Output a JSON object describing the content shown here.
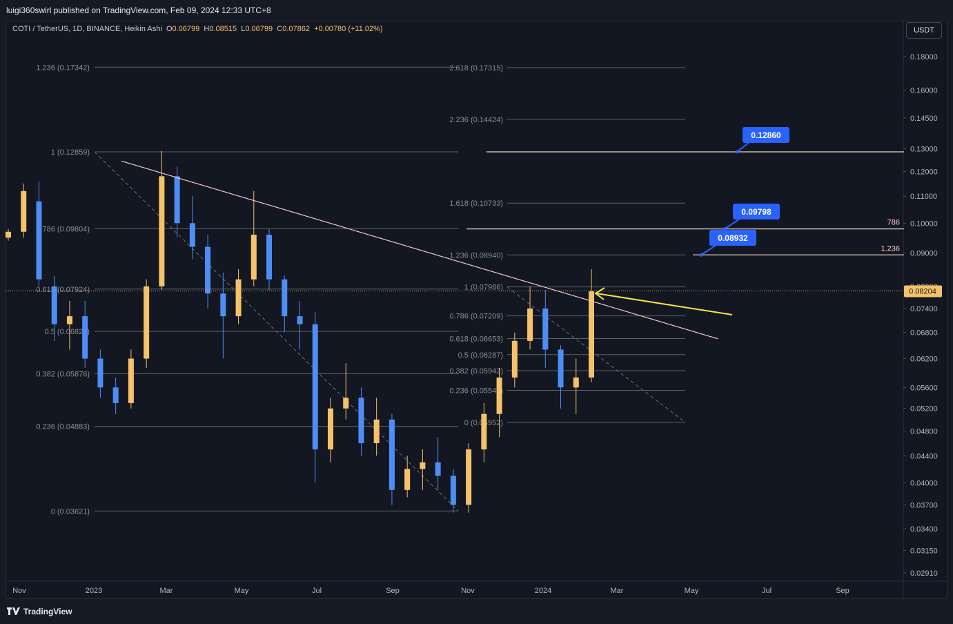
{
  "publisher": "luigi360swirl published on TradingView.com, Feb 09, 2024 12:33 UTC+8",
  "legend": {
    "symbol": "COTI / TetherUS, 1D, BINANCE, Heikin Ashi",
    "o_label": "O",
    "o_value": "0.06799",
    "h_label": "H",
    "h_value": "0.08515",
    "l_label": "L",
    "l_value": "0.06799",
    "c_label": "C",
    "c_value": "0.07862",
    "change": "+0.00780 (+11.02%)"
  },
  "currency_button": "USDT",
  "footer": {
    "brand": "TradingView",
    "logo_icon": "tradingview-logo-icon"
  },
  "colors": {
    "up": "#f5c26b",
    "down": "#4d8ef5",
    "trend": "#f3c8d4",
    "arrow": "#f5e642",
    "label_bg": "#2962ff",
    "price_tag": "#f5c26b"
  },
  "chart_data": {
    "type": "candlestick",
    "chart_style": "Heikin Ashi",
    "scale": "log",
    "y_ticks": [
      "0.18000",
      "0.16000",
      "0.14500",
      "0.13000",
      "0.12000",
      "0.11000",
      "0.10000",
      "0.09000",
      "0.08000",
      "0.07400",
      "0.06800",
      "0.06200",
      "0.05600",
      "0.05200",
      "0.04800",
      "0.04400",
      "0.04000",
      "0.03700",
      "0.03400",
      "0.03150",
      "0.02910"
    ],
    "x_ticks": [
      "Nov",
      "2023",
      "Mar",
      "May",
      "Jul",
      "Sep",
      "Nov",
      "2024",
      "Mar",
      "May",
      "Jul",
      "Sep"
    ],
    "last_price": "0.08204",
    "candles_approx": [
      [
        0.095,
        0.098,
        0.094,
        0.097
      ],
      [
        0.097,
        0.115,
        0.095,
        0.112
      ],
      [
        0.108,
        0.116,
        0.08,
        0.082
      ],
      [
        0.08,
        0.083,
        0.066,
        0.07
      ],
      [
        0.07,
        0.076,
        0.064,
        0.072
      ],
      [
        0.072,
        0.076,
        0.06,
        0.062
      ],
      [
        0.062,
        0.064,
        0.054,
        0.056
      ],
      [
        0.056,
        0.058,
        0.051,
        0.053
      ],
      [
        0.053,
        0.064,
        0.052,
        0.062
      ],
      [
        0.062,
        0.082,
        0.06,
        0.08
      ],
      [
        0.08,
        0.129,
        0.079,
        0.118
      ],
      [
        0.118,
        0.122,
        0.095,
        0.1
      ],
      [
        0.1,
        0.11,
        0.088,
        0.092
      ],
      [
        0.092,
        0.096,
        0.074,
        0.078
      ],
      [
        0.078,
        0.084,
        0.062,
        0.072
      ],
      [
        0.072,
        0.085,
        0.07,
        0.082
      ],
      [
        0.082,
        0.112,
        0.08,
        0.096
      ],
      [
        0.096,
        0.098,
        0.079,
        0.082
      ],
      [
        0.082,
        0.083,
        0.068,
        0.072
      ],
      [
        0.072,
        0.076,
        0.064,
        0.07
      ],
      [
        0.07,
        0.073,
        0.04,
        0.045
      ],
      [
        0.045,
        0.054,
        0.043,
        0.052
      ],
      [
        0.052,
        0.061,
        0.05,
        0.054
      ],
      [
        0.054,
        0.056,
        0.044,
        0.046
      ],
      [
        0.046,
        0.054,
        0.044,
        0.05
      ],
      [
        0.05,
        0.051,
        0.037,
        0.039
      ],
      [
        0.039,
        0.044,
        0.038,
        0.042
      ],
      [
        0.042,
        0.045,
        0.039,
        0.043
      ],
      [
        0.043,
        0.047,
        0.039,
        0.041
      ],
      [
        0.041,
        0.042,
        0.036,
        0.037
      ],
      [
        0.037,
        0.046,
        0.036,
        0.045
      ],
      [
        0.045,
        0.053,
        0.043,
        0.051
      ],
      [
        0.051,
        0.06,
        0.047,
        0.058
      ],
      [
        0.058,
        0.068,
        0.056,
        0.066
      ],
      [
        0.066,
        0.08,
        0.064,
        0.074
      ],
      [
        0.074,
        0.079,
        0.06,
        0.064
      ],
      [
        0.064,
        0.065,
        0.052,
        0.056
      ],
      [
        0.056,
        0.062,
        0.051,
        0.058
      ],
      [
        0.058,
        0.085,
        0.057,
        0.0786
      ]
    ],
    "fib_left": [
      {
        "ratio": "1.236",
        "price": "0.17342"
      },
      {
        "ratio": "1",
        "price": "0.12859"
      },
      {
        "ratio": "0.786",
        "price": "0.09804"
      },
      {
        "ratio": "0.618",
        "price": "0.07924"
      },
      {
        "ratio": "0.5",
        "price": "0.06824"
      },
      {
        "ratio": "0.382",
        "price": "0.05876"
      },
      {
        "ratio": "0.236",
        "price": "0.04883"
      },
      {
        "ratio": "0",
        "price": "0.03621"
      }
    ],
    "fib_right": [
      {
        "ratio": "2.618",
        "price": "0.17315"
      },
      {
        "ratio": "2.236",
        "price": "0.14424"
      },
      {
        "ratio": "1.618",
        "price": "0.10733"
      },
      {
        "ratio": "1.236",
        "price": "0.08940"
      },
      {
        "ratio": "1",
        "price": "0.07986"
      },
      {
        "ratio": "0.786",
        "price": "0.07209"
      },
      {
        "ratio": "0.618",
        "price": "0.06653"
      },
      {
        "ratio": "0.5",
        "price": "0.06287"
      },
      {
        "ratio": "0.382",
        "price": "0.05942"
      },
      {
        "ratio": "0.236",
        "price": "0.05542"
      },
      {
        "ratio": "0",
        "price": "0.04952"
      }
    ],
    "price_callouts": [
      "0.12860",
      "0.09798",
      "0.08932"
    ],
    "line_labels": [
      "786",
      "1.236"
    ]
  }
}
